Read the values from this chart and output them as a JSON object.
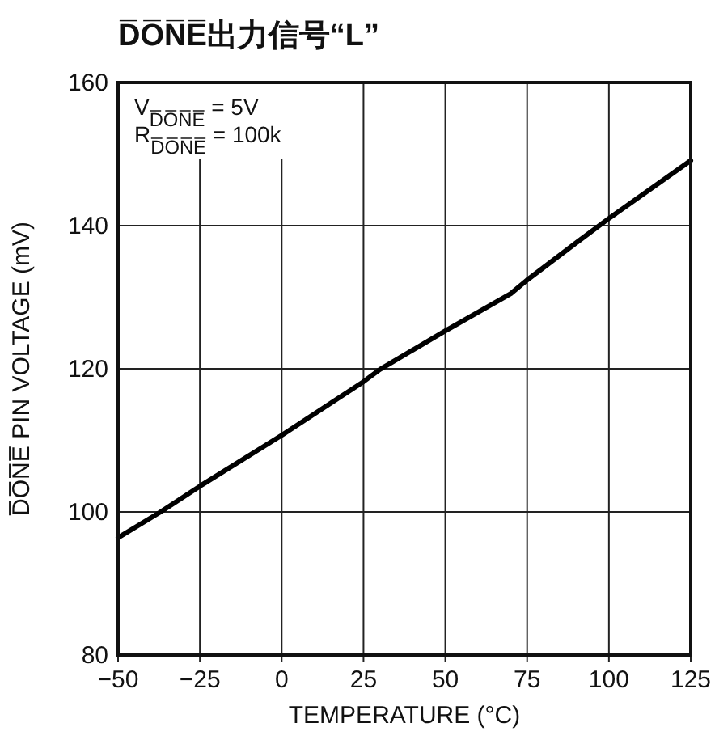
{
  "chart_data": {
    "type": "line",
    "title": "D̅O̅N̅E̅出力信号“L”",
    "xlabel": "TEMPERATURE (°C)",
    "ylabel": "D̅O̅N̅E̅ PIN VOLTAGE (mV)",
    "annotations": [
      "V$_{D̅O̅N̅E̅}$ = 5V",
      "R$_{D̅O̅N̅E̅}$ = 100k"
    ],
    "x": [
      -50,
      -37,
      -25,
      0,
      25,
      30,
      50,
      70,
      75,
      90,
      100,
      125
    ],
    "series": [
      {
        "color": "#000000",
        "values": [
          96.4,
          100,
          103.6,
          110.7,
          118.2,
          119.9,
          125.3,
          130.5,
          132.4,
          137.6,
          141.0,
          149.1
        ]
      }
    ],
    "xlim": [
      -50,
      125
    ],
    "xticks": [
      {
        "value": -50,
        "label": "−50"
      },
      {
        "value": -25,
        "label": "−25"
      },
      0,
      25,
      50,
      75,
      100,
      125
    ],
    "ylim": [
      80,
      160
    ],
    "yticks": [
      80,
      100,
      120,
      140,
      160
    ],
    "grid": true,
    "marker": "none",
    "line_style": "solid"
  }
}
